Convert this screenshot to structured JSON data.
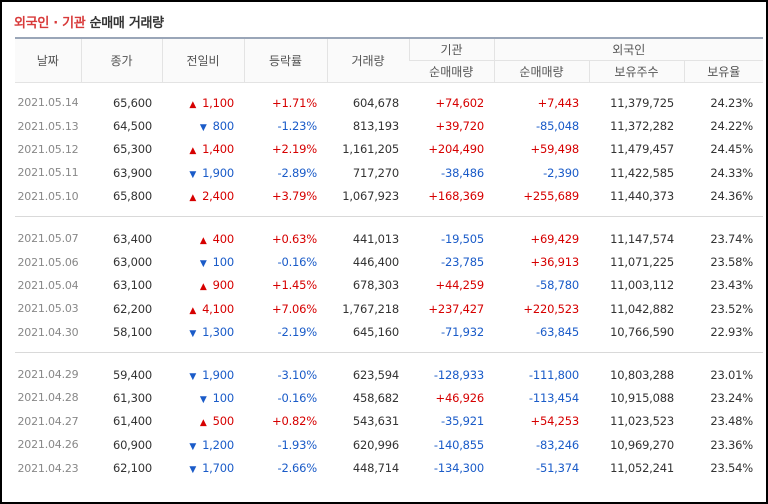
{
  "title": {
    "part1": "외국인 · 기관",
    "part2": " 순매매 거래량"
  },
  "headers": {
    "date": "날짜",
    "close": "종가",
    "change": "전일비",
    "rate": "등락률",
    "volume": "거래량",
    "inst": "기관",
    "foreign": "외국인",
    "inst_net": "순매매량",
    "for_net": "순매매량",
    "holdings": "보유주수",
    "ratio": "보유율"
  },
  "groups": [
    [
      {
        "date": "2021.05.14",
        "close": "65,600",
        "dir": "up",
        "change": "1,100",
        "rate": "+1.71%",
        "volume": "604,678",
        "inst": "+74,602",
        "foreign": "+7,443",
        "holdings": "11,379,725",
        "ratio": "24.23%"
      },
      {
        "date": "2021.05.13",
        "close": "64,500",
        "dir": "down",
        "change": "800",
        "rate": "-1.23%",
        "volume": "813,193",
        "inst": "+39,720",
        "foreign": "-85,048",
        "holdings": "11,372,282",
        "ratio": "24.22%"
      },
      {
        "date": "2021.05.12",
        "close": "65,300",
        "dir": "up",
        "change": "1,400",
        "rate": "+2.19%",
        "volume": "1,161,205",
        "inst": "+204,490",
        "foreign": "+59,498",
        "holdings": "11,479,457",
        "ratio": "24.45%"
      },
      {
        "date": "2021.05.11",
        "close": "63,900",
        "dir": "down",
        "change": "1,900",
        "rate": "-2.89%",
        "volume": "717,270",
        "inst": "-38,486",
        "foreign": "-2,390",
        "holdings": "11,422,585",
        "ratio": "24.33%"
      },
      {
        "date": "2021.05.10",
        "close": "65,800",
        "dir": "up",
        "change": "2,400",
        "rate": "+3.79%",
        "volume": "1,067,923",
        "inst": "+168,369",
        "foreign": "+255,689",
        "holdings": "11,440,373",
        "ratio": "24.36%"
      }
    ],
    [
      {
        "date": "2021.05.07",
        "close": "63,400",
        "dir": "up",
        "change": "400",
        "rate": "+0.63%",
        "volume": "441,013",
        "inst": "-19,505",
        "foreign": "+69,429",
        "holdings": "11,147,574",
        "ratio": "23.74%"
      },
      {
        "date": "2021.05.06",
        "close": "63,000",
        "dir": "down",
        "change": "100",
        "rate": "-0.16%",
        "volume": "446,400",
        "inst": "-23,785",
        "foreign": "+36,913",
        "holdings": "11,071,225",
        "ratio": "23.58%"
      },
      {
        "date": "2021.05.04",
        "close": "63,100",
        "dir": "up",
        "change": "900",
        "rate": "+1.45%",
        "volume": "678,303",
        "inst": "+44,259",
        "foreign": "-58,780",
        "holdings": "11,003,112",
        "ratio": "23.43%"
      },
      {
        "date": "2021.05.03",
        "close": "62,200",
        "dir": "up",
        "change": "4,100",
        "rate": "+7.06%",
        "volume": "1,767,218",
        "inst": "+237,427",
        "foreign": "+220,523",
        "holdings": "11,042,882",
        "ratio": "23.52%"
      },
      {
        "date": "2021.04.30",
        "close": "58,100",
        "dir": "down",
        "change": "1,300",
        "rate": "-2.19%",
        "volume": "645,160",
        "inst": "-71,932",
        "foreign": "-63,845",
        "holdings": "10,766,590",
        "ratio": "22.93%"
      }
    ],
    [
      {
        "date": "2021.04.29",
        "close": "59,400",
        "dir": "down",
        "change": "1,900",
        "rate": "-3.10%",
        "volume": "623,594",
        "inst": "-128,933",
        "foreign": "-111,800",
        "holdings": "10,803,288",
        "ratio": "23.01%"
      },
      {
        "date": "2021.04.28",
        "close": "61,300",
        "dir": "down",
        "change": "100",
        "rate": "-0.16%",
        "volume": "458,682",
        "inst": "+46,926",
        "foreign": "-113,454",
        "holdings": "10,915,088",
        "ratio": "23.24%"
      },
      {
        "date": "2021.04.27",
        "close": "61,400",
        "dir": "up",
        "change": "500",
        "rate": "+0.82%",
        "volume": "543,631",
        "inst": "-35,921",
        "foreign": "+54,253",
        "holdings": "11,023,523",
        "ratio": "23.48%"
      },
      {
        "date": "2021.04.26",
        "close": "60,900",
        "dir": "down",
        "change": "1,200",
        "rate": "-1.93%",
        "volume": "620,996",
        "inst": "-140,855",
        "foreign": "-83,246",
        "holdings": "10,969,270",
        "ratio": "23.36%"
      },
      {
        "date": "2021.04.23",
        "close": "62,100",
        "dir": "down",
        "change": "1,700",
        "rate": "-2.66%",
        "volume": "448,714",
        "inst": "-134,300",
        "foreign": "-51,374",
        "holdings": "11,052,241",
        "ratio": "23.54%"
      }
    ]
  ],
  "icons": {
    "up": "triangle-up-icon",
    "down": "triangle-down-icon"
  },
  "colors": {
    "up": "#d60000",
    "down": "#1a5bc8",
    "title_accent": "#d83a3a"
  }
}
